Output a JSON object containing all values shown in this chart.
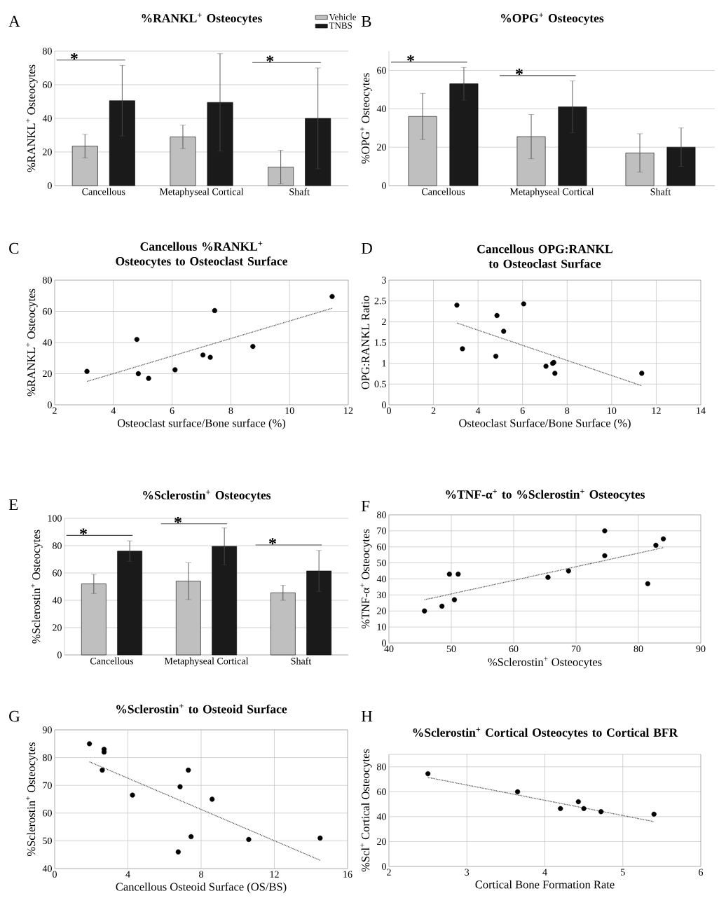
{
  "chart_data": [
    {
      "type": "bar",
      "title": "%RANKL$^{+}$ Osteocytes",
      "ylabel": "%RANKL$^{+}$ Osteocytes",
      "categories": [
        "Cancellous",
        "Metaphyseal Cortical",
        "Shaft"
      ],
      "series": [
        {
          "name": "Vehicle",
          "color": "#bfbfbf",
          "values": [
            23.5,
            29,
            11
          ],
          "errors": [
            7,
            7,
            10
          ]
        },
        {
          "name": "TNBS",
          "color": "#1a1a1a",
          "values": [
            50.5,
            49.5,
            40
          ],
          "errors": [
            21,
            29,
            30
          ]
        }
      ],
      "ylim": [
        0,
        80
      ],
      "yticks": [
        0,
        20,
        40,
        60,
        80
      ],
      "grid": "y",
      "legend": "top right",
      "annotations": [
        "A",
        "*",
        "*"
      ]
    },
    {
      "type": "bar",
      "title": "%OPG$^{+}$ Osteocytes",
      "ylabel": "%OPG$^{+}$ Osteocytes",
      "categories": [
        "Cancellous",
        "Metaphyseal Cortical",
        "Shaft"
      ],
      "series": [
        {
          "color": "#bfbfbf",
          "values": [
            36,
            25.5,
            17
          ],
          "errors": [
            12,
            11.5,
            10
          ]
        },
        {
          "color": "#1a1a1a",
          "values": [
            53,
            41,
            20
          ],
          "errors": [
            8.5,
            13.5,
            10
          ]
        }
      ],
      "ylim": [
        0,
        70
      ],
      "yticks": [
        0,
        20,
        40,
        60
      ],
      "grid": "y",
      "annotations": [
        "B",
        "*",
        "*"
      ]
    },
    {
      "type": "scatter",
      "title": "Cancellous %RANKL$^{+}$ Osteocytes to Osteoclast Surface",
      "xlabel": "Osteoclast surface/Bone surface (%)",
      "ylabel": "%RANKL$^{+}$ Osteocytes",
      "series": [
        {
          "color": "#000000",
          "marker": "circle",
          "x": [
            3.1,
            4.8,
            4.85,
            5.2,
            6.1,
            7.05,
            7.3,
            7.45,
            8.75,
            11.45
          ],
          "values": [
            21.5,
            42,
            20,
            17,
            22.5,
            32,
            30.5,
            60.5,
            37.5,
            69.5
          ]
        },
        {
          "type": "line",
          "color": "#555555",
          "line_style": "dotted",
          "marker": "none",
          "x": [
            3.1,
            11.45
          ],
          "values": [
            15,
            62
          ]
        }
      ],
      "xlim": [
        2,
        12
      ],
      "xticks": [
        2,
        4,
        6,
        8,
        10,
        12
      ],
      "ylim": [
        0,
        80
      ],
      "yticks": [
        0,
        20,
        40,
        60,
        80
      ],
      "grid": true,
      "annotations": [
        "C"
      ]
    },
    {
      "type": "scatter",
      "title": "Cancellous OPG:RANKL to Osteoclast Surface",
      "xlabel": "Osteoclast Surface/Bone Surface (%)",
      "ylabel": "OPG:RANKL Ratio",
      "series": [
        {
          "color": "#000000",
          "marker": "circle",
          "x": [
            3.05,
            3.3,
            4.8,
            4.85,
            5.15,
            6.05,
            7.05,
            7.35,
            7.4,
            7.45,
            11.35
          ],
          "values": [
            2.4,
            1.35,
            1.17,
            2.15,
            1.77,
            2.43,
            0.93,
            1.0,
            1.02,
            0.76,
            0.76
          ]
        },
        {
          "type": "line",
          "color": "#555555",
          "line_style": "dotted",
          "marker": "none",
          "x": [
            3.05,
            11.35
          ],
          "values": [
            1.97,
            0.46
          ]
        }
      ],
      "xlim": [
        0,
        14
      ],
      "xticks": [
        0,
        2,
        4,
        6,
        8,
        10,
        12,
        14
      ],
      "ylim": [
        0,
        3
      ],
      "yticks": [
        0,
        0.5,
        1,
        1.5,
        2,
        2.5,
        3
      ],
      "grid": true,
      "annotations": [
        "D"
      ]
    },
    {
      "type": "bar",
      "title": "%Sclerostin$^{+}$ Osteocytes",
      "ylabel": "%Sclerostin$^{+}$ Osteocytes",
      "categories": [
        "Cancellous",
        "Metaphyseal Cortical",
        "Shaft"
      ],
      "series": [
        {
          "color": "#bfbfbf",
          "values": [
            52,
            54,
            45.5
          ],
          "errors": [
            7,
            13.5,
            5.5
          ]
        },
        {
          "color": "#1a1a1a",
          "values": [
            76,
            79.5,
            61.5
          ],
          "errors": [
            7.5,
            13.5,
            15
          ]
        }
      ],
      "ylim": [
        0,
        100
      ],
      "yticks": [
        0,
        20,
        40,
        60,
        80,
        100
      ],
      "grid": "y",
      "annotations": [
        "E",
        "*",
        "*",
        "*"
      ]
    },
    {
      "type": "scatter",
      "title": "%TNF-α$^{+}$ to %Sclerostin$^{+}$ Osteocytes",
      "xlabel": "%Sclerostin$^{+}$ Osteocytes",
      "ylabel": "%TNF-α$^{+}$ Osteocytes",
      "series": [
        {
          "color": "#000000",
          "marker": "circle",
          "x": [
            45.7,
            48.5,
            49.7,
            50.5,
            51.1,
            65.5,
            68.8,
            74.6,
            74.6,
            81.5,
            82.8,
            84
          ],
          "values": [
            20,
            23,
            43,
            27,
            43,
            41,
            45,
            70,
            54.5,
            37,
            61,
            65
          ]
        },
        {
          "type": "line",
          "color": "#555555",
          "line_style": "dotted",
          "marker": "none",
          "x": [
            45.7,
            84
          ],
          "values": [
            27,
            59.5
          ]
        }
      ],
      "xlim": [
        40,
        90
      ],
      "xticks": [
        40,
        50,
        60,
        70,
        80,
        90
      ],
      "ylim": [
        0,
        80
      ],
      "yticks": [
        0,
        10,
        20,
        30,
        40,
        50,
        60,
        70,
        80
      ],
      "grid": true,
      "annotations": [
        "F"
      ]
    },
    {
      "type": "scatter",
      "title": "%Sclerostin$^{+}$ to Osteoid Surface",
      "xlabel": "Cancellous Osteoid Surface (OS/BS)",
      "ylabel": "%Sclerostin$^{+}$ Osteocytes",
      "series": [
        {
          "color": "#000000",
          "marker": "circle",
          "x": [
            1.9,
            2.7,
            2.7,
            2.6,
            4.25,
            6.85,
            7.3,
            6.75,
            7.45,
            8.6,
            10.6,
            14.5
          ],
          "values": [
            85,
            83,
            82,
            75.5,
            66.5,
            69.5,
            75.5,
            46,
            51.5,
            65,
            50.5,
            51
          ]
        },
        {
          "type": "line",
          "color": "#555555",
          "line_style": "dotted",
          "marker": "none",
          "x": [
            1.9,
            14.5
          ],
          "values": [
            78.5,
            43
          ]
        }
      ],
      "xlim": [
        0,
        16
      ],
      "xticks": [
        0,
        4,
        8,
        12,
        16
      ],
      "ylim": [
        40,
        90
      ],
      "yticks": [
        40,
        50,
        60,
        70,
        80,
        90
      ],
      "grid": true,
      "annotations": [
        "G"
      ]
    },
    {
      "type": "scatter",
      "title": "%Sclerostin$^{+}$ Cortical Osteocytes to Cortical BFR",
      "xlabel": "Cortical Bone Formation Rate",
      "ylabel": "%Scl$^{+}$ Cortical Osteocytes",
      "series": [
        {
          "color": "#000000",
          "marker": "circle",
          "x": [
            2.5,
            3.65,
            4.2,
            4.43,
            4.5,
            4.72,
            5.4
          ],
          "values": [
            74.5,
            60,
            46.5,
            52,
            46.5,
            44,
            42
          ]
        },
        {
          "type": "line",
          "color": "#555555",
          "line_style": "dotted",
          "marker": "none",
          "x": [
            2.5,
            5.4
          ],
          "values": [
            71.5,
            36
          ]
        }
      ],
      "xlim": [
        2,
        6
      ],
      "xticks": [
        2,
        3,
        4,
        5,
        6
      ],
      "ylim": [
        0,
        90
      ],
      "yticks": [
        0,
        20,
        40,
        60,
        80
      ],
      "grid": true,
      "annotations": [
        "H"
      ]
    }
  ]
}
